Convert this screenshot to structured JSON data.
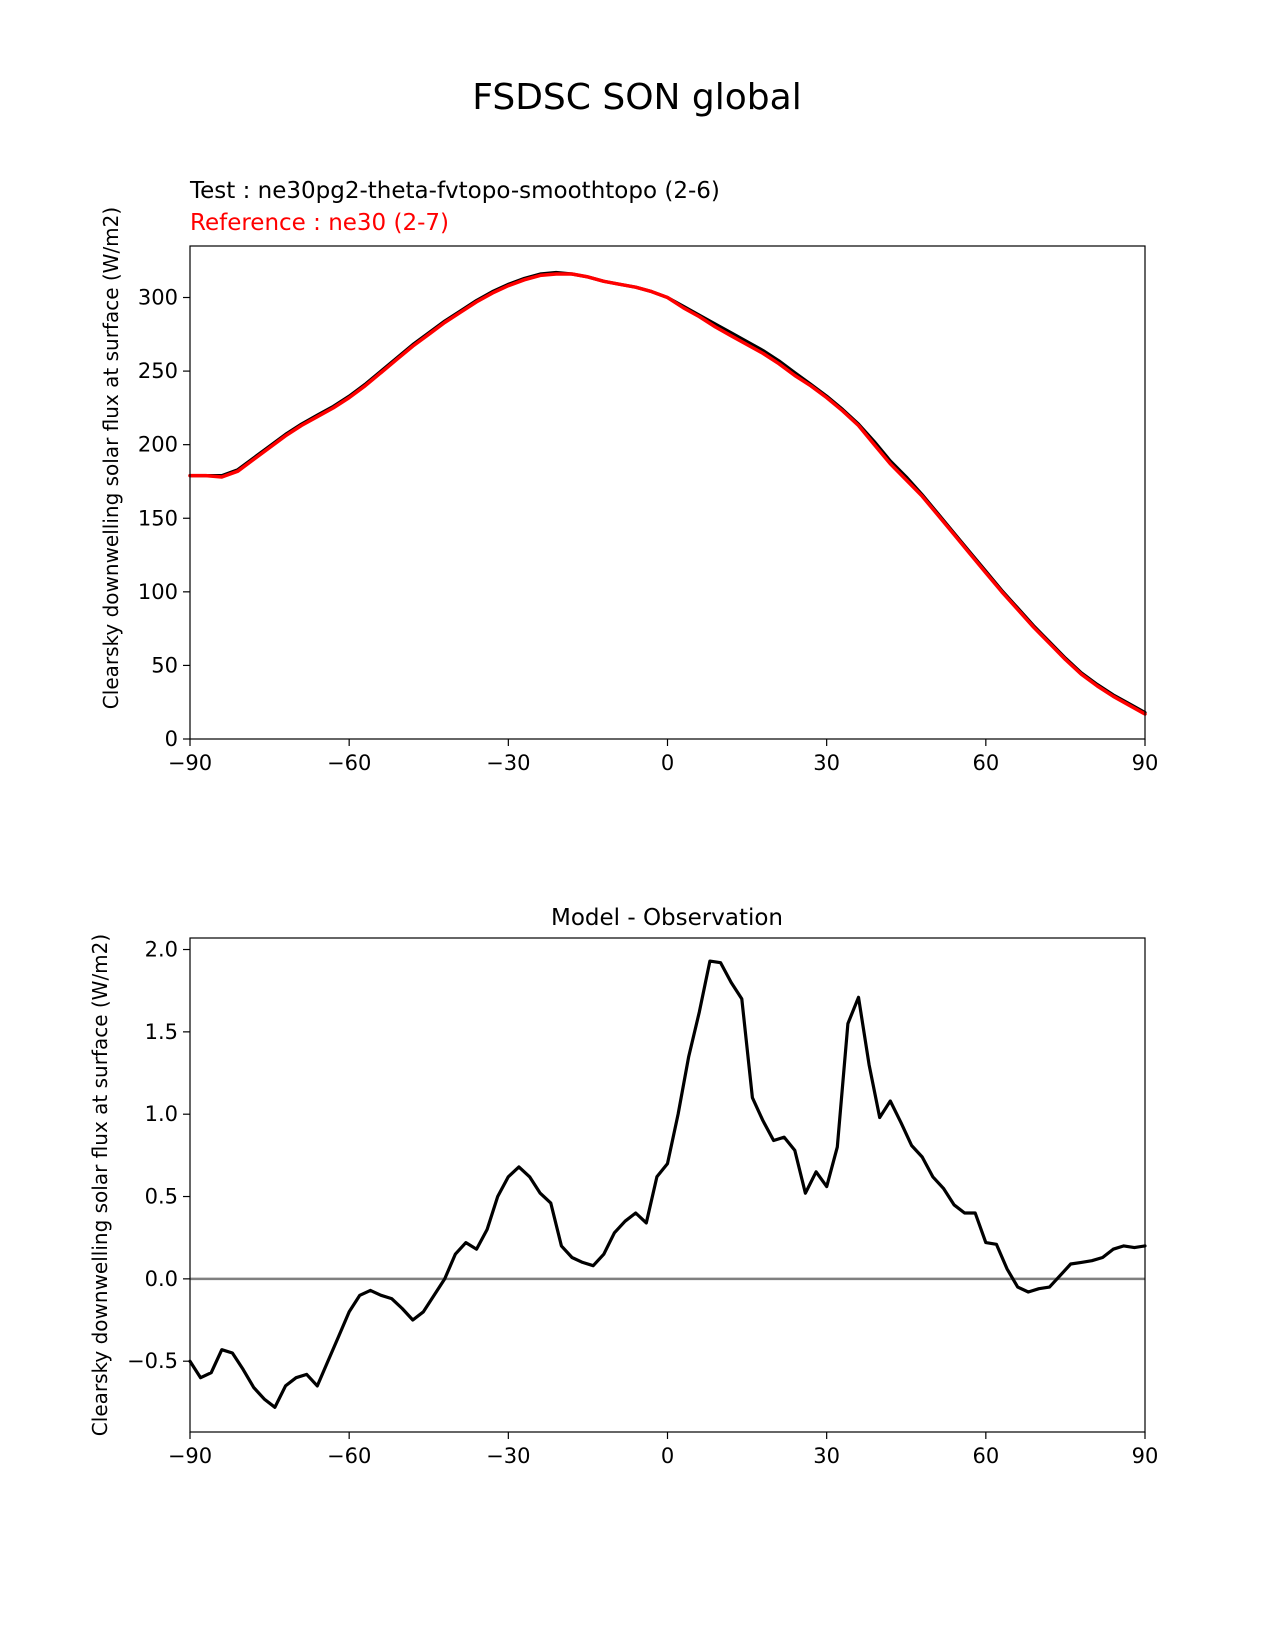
{
  "figure": {
    "title": "FSDSC SON global"
  },
  "colors": {
    "test": "#000000",
    "reference": "#ff0000",
    "zero_line": "#808080",
    "axes": "#000000"
  },
  "chart_data": [
    {
      "type": "line",
      "id": "top",
      "title": "",
      "test_label": "Test : ne30pg2-theta-fvtopo-smoothtopo (2-6)",
      "reference_label": "Reference : ne30 (2-7)",
      "ylabel": "Clearsky downwelling solar flux at surface (W/m2)",
      "xlabel": "",
      "xlim": [
        -90,
        90
      ],
      "ylim": [
        0,
        335
      ],
      "xticks": [
        -90,
        -60,
        -30,
        0,
        30,
        60,
        90
      ],
      "xtick_labels": [
        "−90",
        "−60",
        "−30",
        "0",
        "30",
        "60",
        "90"
      ],
      "yticks": [
        0,
        50,
        100,
        150,
        200,
        250,
        300
      ],
      "ytick_labels": [
        "0",
        "50",
        "100",
        "150",
        "200",
        "250",
        "300"
      ],
      "series": [
        {
          "name": "Test",
          "x": [
            -90,
            -87,
            -84,
            -81,
            -78,
            -75,
            -72,
            -69,
            -66,
            -63,
            -60,
            -57,
            -54,
            -51,
            -48,
            -45,
            -42,
            -39,
            -36,
            -33,
            -30,
            -27,
            -24,
            -21,
            -18,
            -15,
            -12,
            -9,
            -6,
            -3,
            0,
            3,
            6,
            9,
            12,
            15,
            18,
            21,
            24,
            27,
            30,
            33,
            36,
            39,
            42,
            45,
            48,
            51,
            54,
            57,
            60,
            63,
            66,
            69,
            72,
            75,
            78,
            81,
            84,
            87,
            90
          ],
          "y": [
            179,
            179,
            179,
            183,
            191,
            199,
            207,
            214,
            220,
            226,
            233,
            241,
            250,
            259,
            268,
            276,
            284,
            291,
            298,
            304,
            309,
            313,
            316,
            317,
            316,
            314,
            311,
            309,
            307,
            304,
            300,
            294,
            288,
            282,
            276,
            270,
            264,
            257,
            249,
            241,
            233,
            224,
            214,
            202,
            189,
            178,
            166,
            153,
            140,
            127,
            114,
            101,
            89,
            77,
            66,
            55,
            45,
            37,
            30,
            24,
            18
          ]
        },
        {
          "name": "Reference",
          "x": [
            -90,
            -87,
            -84,
            -81,
            -78,
            -75,
            -72,
            -69,
            -66,
            -63,
            -60,
            -57,
            -54,
            -51,
            -48,
            -45,
            -42,
            -39,
            -36,
            -33,
            -30,
            -27,
            -24,
            -21,
            -18,
            -15,
            -12,
            -9,
            -6,
            -3,
            0,
            3,
            6,
            9,
            12,
            15,
            18,
            21,
            24,
            27,
            30,
            33,
            36,
            39,
            42,
            45,
            48,
            51,
            54,
            57,
            60,
            63,
            66,
            69,
            72,
            75,
            78,
            81,
            84,
            87,
            90
          ],
          "y": [
            179,
            179,
            178,
            182,
            190,
            198,
            206,
            213,
            219,
            225,
            232,
            240,
            249,
            258,
            267,
            275,
            283,
            290,
            297,
            303,
            308,
            312,
            315,
            316,
            316,
            314,
            311,
            309,
            307,
            304,
            300,
            293,
            287,
            280,
            274,
            268,
            262,
            255,
            247,
            240,
            232,
            223,
            213,
            200,
            187,
            176,
            165,
            152,
            139,
            126,
            113,
            100,
            88,
            76,
            65,
            54,
            44,
            36,
            29,
            23,
            17
          ]
        }
      ]
    },
    {
      "type": "line",
      "id": "bottom",
      "title": "Model - Observation",
      "ylabel": "Clearsky downwelling solar flux at surface (W/m2)",
      "xlabel": "",
      "xlim": [
        -90,
        90
      ],
      "ylim": [
        -0.93,
        2.07
      ],
      "xticks": [
        -90,
        -60,
        -30,
        0,
        30,
        60,
        90
      ],
      "xtick_labels": [
        "−90",
        "−60",
        "−30",
        "0",
        "30",
        "60",
        "90"
      ],
      "yticks": [
        -0.5,
        0.0,
        0.5,
        1.0,
        1.5,
        2.0
      ],
      "ytick_labels": [
        "−0.5",
        "0.0",
        "0.5",
        "1.0",
        "1.5",
        "2.0"
      ],
      "zero_line": 0,
      "series": [
        {
          "name": "Model - Observation",
          "x": [
            -90,
            -88,
            -86,
            -84,
            -82,
            -80,
            -78,
            -76,
            -74,
            -72,
            -70,
            -68,
            -66,
            -64,
            -62,
            -60,
            -58,
            -56,
            -54,
            -52,
            -50,
            -48,
            -46,
            -44,
            -42,
            -40,
            -38,
            -36,
            -34,
            -32,
            -30,
            -28,
            -26,
            -24,
            -22,
            -20,
            -18,
            -16,
            -14,
            -12,
            -10,
            -8,
            -6,
            -4,
            -2,
            0,
            2,
            4,
            6,
            8,
            10,
            12,
            14,
            16,
            18,
            20,
            22,
            24,
            26,
            28,
            30,
            32,
            34,
            36,
            38,
            40,
            42,
            44,
            46,
            48,
            50,
            52,
            54,
            56,
            58,
            60,
            62,
            64,
            66,
            68,
            70,
            72,
            74,
            76,
            78,
            80,
            82,
            84,
            86,
            88,
            90
          ],
          "y": [
            -0.5,
            -0.6,
            -0.57,
            -0.43,
            -0.45,
            -0.55,
            -0.66,
            -0.73,
            -0.78,
            -0.65,
            -0.6,
            -0.58,
            -0.65,
            -0.5,
            -0.35,
            -0.2,
            -0.1,
            -0.07,
            -0.1,
            -0.12,
            -0.18,
            -0.25,
            -0.2,
            -0.1,
            0.0,
            0.15,
            0.22,
            0.18,
            0.3,
            0.5,
            0.62,
            0.68,
            0.62,
            0.52,
            0.46,
            0.2,
            0.13,
            0.1,
            0.08,
            0.15,
            0.28,
            0.35,
            0.4,
            0.34,
            0.62,
            0.7,
            1.0,
            1.35,
            1.62,
            1.93,
            1.92,
            1.8,
            1.7,
            1.1,
            0.96,
            0.84,
            0.86,
            0.78,
            0.52,
            0.65,
            0.56,
            0.8,
            1.55,
            1.71,
            1.3,
            0.98,
            1.08,
            0.95,
            0.81,
            0.74,
            0.62,
            0.55,
            0.45,
            0.4,
            0.4,
            0.22,
            0.21,
            0.06,
            -0.05,
            -0.08,
            -0.06,
            -0.05,
            0.02,
            0.09,
            0.1,
            0.11,
            0.13,
            0.18,
            0.2,
            0.19,
            0.2
          ]
        }
      ]
    }
  ]
}
